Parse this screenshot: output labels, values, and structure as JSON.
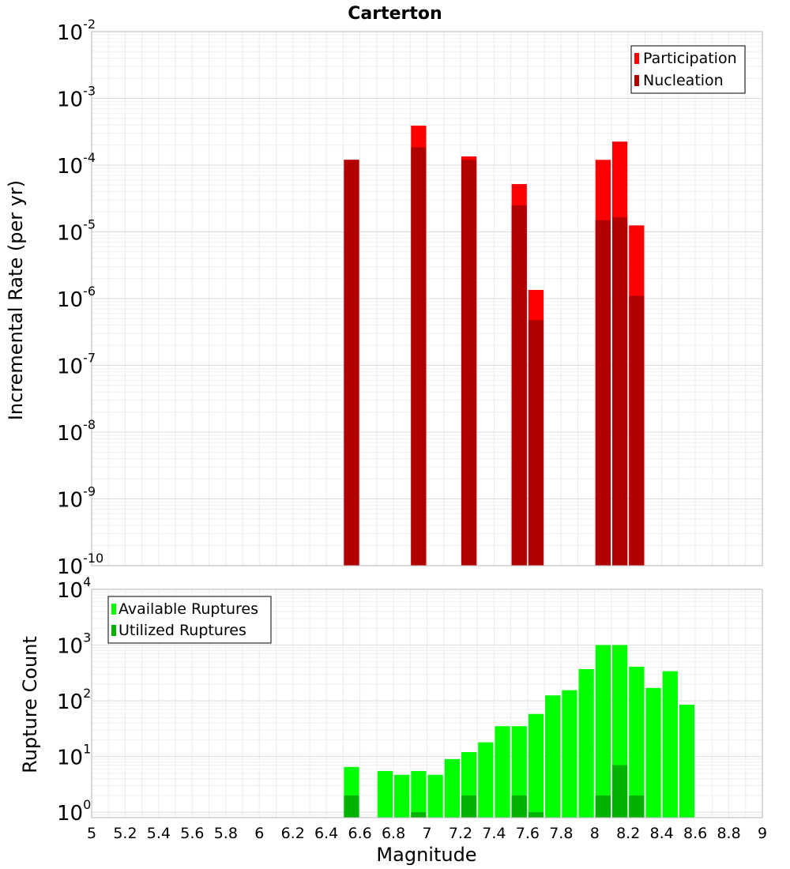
{
  "chart_data": [
    {
      "type": "bar",
      "title": "Carterton",
      "xlabel": "",
      "ylabel": "Incremental Rate (per yr)",
      "yscale": "log",
      "xlim": [
        5,
        9
      ],
      "ylim": [
        1e-10,
        0.01
      ],
      "grid": true,
      "legend_position": "top-right",
      "bin_width": 0.1,
      "x": [
        6.55,
        6.95,
        7.25,
        7.55,
        7.65,
        8.05,
        8.15,
        8.25
      ],
      "series": [
        {
          "name": "Participation",
          "color": "#ff0000",
          "values": [
            0.00012,
            0.00039,
            0.000135,
            5.2e-05,
            1.35e-06,
            0.00012,
            0.000225,
            1.25e-05
          ]
        },
        {
          "name": "Nucleation",
          "color": "#b20000",
          "values": [
            0.00012,
            0.000185,
            0.00012,
            2.5e-05,
            4.8e-07,
            1.5e-05,
            1.65e-05,
            1.1e-06
          ]
        }
      ],
      "y_ticks": [
        {
          "base": "10",
          "exp": "-2"
        },
        {
          "base": "10",
          "exp": "-3"
        },
        {
          "base": "10",
          "exp": "-4"
        },
        {
          "base": "10",
          "exp": "-5"
        },
        {
          "base": "10",
          "exp": "-6"
        },
        {
          "base": "10",
          "exp": "-7"
        },
        {
          "base": "10",
          "exp": "-8"
        },
        {
          "base": "10",
          "exp": "-9"
        },
        {
          "base": "10",
          "exp": "-10"
        }
      ]
    },
    {
      "type": "bar",
      "title": "",
      "xlabel": "Magnitude",
      "ylabel": "Rupture Count",
      "yscale": "log",
      "xlim": [
        5,
        9
      ],
      "ylim": [
        0.8,
        10000
      ],
      "grid": true,
      "legend_position": "top-left",
      "bin_width": 0.1,
      "x": [
        6.55,
        6.75,
        6.85,
        6.95,
        7.05,
        7.15,
        7.25,
        7.35,
        7.45,
        7.55,
        7.65,
        7.75,
        7.85,
        7.95,
        8.05,
        8.15,
        8.25,
        8.35,
        8.45,
        8.55
      ],
      "series": [
        {
          "name": "Available Ruptures",
          "color": "#00ff00",
          "values": [
            6.5,
            5.5,
            4.7,
            5.5,
            4.7,
            9,
            12,
            18,
            35,
            35,
            58,
            125,
            155,
            370,
            1000,
            1000,
            410,
            170,
            340,
            85
          ]
        },
        {
          "name": "Utilized Ruptures",
          "color": "#00b200",
          "values": [
            2,
            0,
            0,
            1,
            0,
            0,
            2,
            0,
            0,
            2,
            1,
            0,
            0,
            0,
            2,
            7,
            2,
            0,
            0,
            0
          ]
        }
      ],
      "x_ticks": [
        "5",
        "5.2",
        "5.4",
        "5.6",
        "5.8",
        "6",
        "6.2",
        "6.4",
        "6.6",
        "6.8",
        "7",
        "7.2",
        "7.4",
        "7.6",
        "7.8",
        "8",
        "8.2",
        "8.4",
        "8.6",
        "8.8",
        "9"
      ],
      "y_ticks": [
        {
          "base": "10",
          "exp": "4"
        },
        {
          "base": "10",
          "exp": "3"
        },
        {
          "base": "10",
          "exp": "2"
        },
        {
          "base": "10",
          "exp": "1"
        },
        {
          "base": "10",
          "exp": "0"
        }
      ]
    }
  ]
}
